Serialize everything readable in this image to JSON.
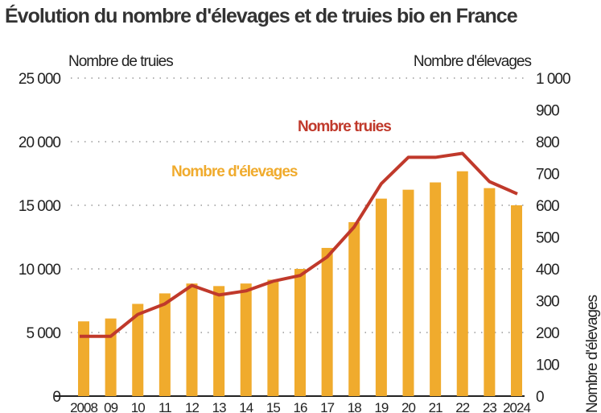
{
  "chart_data": {
    "type": "bar+line",
    "title": "Évolution du nombre d'élevages et de truies bio en France",
    "categories": [
      "2008",
      "09",
      "10",
      "11",
      "12",
      "13",
      "14",
      "15",
      "16",
      "17",
      "18",
      "19",
      "20",
      "21",
      "22",
      "23",
      "2024"
    ],
    "left_axis": {
      "label": "Nombre de truies",
      "range": [
        0,
        25000
      ],
      "ticks": [
        "0",
        "5 000",
        "10 000",
        "15 000",
        "20 000",
        "25 000"
      ]
    },
    "right_axis": {
      "label": "Nombre d'élevages",
      "range": [
        0,
        1000
      ],
      "ticks": [
        "0",
        "100",
        "200",
        "300",
        "400",
        "500",
        "600",
        "700",
        "800",
        "900",
        "1 000"
      ]
    },
    "right_side_label": "Nombre d'élevages",
    "grid": "dotted horizontal",
    "series": [
      {
        "name": "Nombre d'élevages",
        "type": "bar",
        "axis": "right",
        "color": "#f0ab2d",
        "values": [
          235,
          244,
          290,
          323,
          354,
          346,
          354,
          366,
          400,
          466,
          547,
          621,
          649,
          672,
          707,
          654,
          600
        ]
      },
      {
        "name": "Nombre truies",
        "type": "line",
        "axis": "left",
        "color": "#c0392b",
        "values": [
          4700,
          4700,
          6420,
          7250,
          8700,
          7950,
          8270,
          9030,
          9480,
          10940,
          13300,
          16700,
          18770,
          18770,
          19080,
          16860,
          15900
        ]
      }
    ]
  }
}
